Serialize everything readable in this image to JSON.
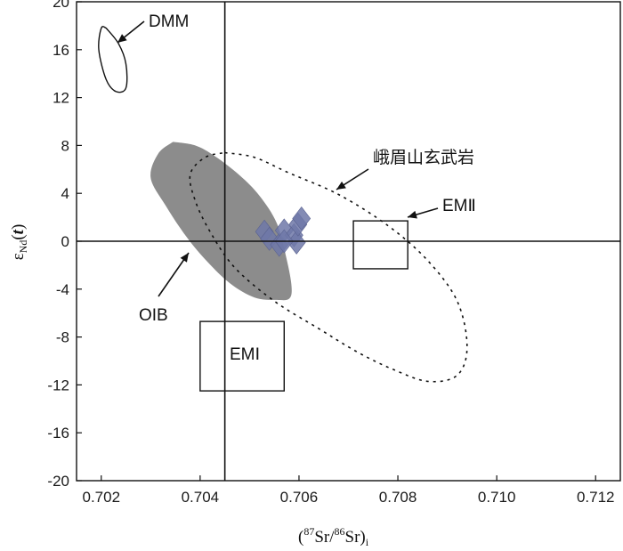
{
  "chart_data": {
    "type": "scatter",
    "xlabel": {
      "open": "(",
      "sup1": "87",
      "m1": "Sr/",
      "sup2": "86",
      "m2": "Sr)",
      "sub": "i"
    },
    "ylabel": {
      "main": "ε",
      "sub": "Nd",
      "open": "(",
      "var": "t",
      "close": ")"
    },
    "xlim": [
      0.7015,
      0.7125
    ],
    "ylim": [
      -20,
      20
    ],
    "x_ticks": [
      "0.702",
      "0.704",
      "0.706",
      "0.708",
      "0.710",
      "0.712"
    ],
    "y_ticks": [
      "20",
      "16",
      "12",
      "8",
      "4",
      "0",
      "-4",
      "-8",
      "-12",
      "-16",
      "-20"
    ],
    "reference_lines": {
      "x": 0.7045,
      "y": 0
    },
    "fields": {
      "dmm": {
        "label": "DMM",
        "points": [
          [
            0.7021,
            17.8
          ],
          [
            0.70235,
            16.5
          ],
          [
            0.7025,
            14.8
          ],
          [
            0.7025,
            12.8
          ],
          [
            0.7023,
            12.5
          ],
          [
            0.7021,
            13.5
          ],
          [
            0.70195,
            16
          ],
          [
            0.702,
            17.8
          ],
          [
            0.7021,
            17.8
          ]
        ]
      },
      "oib": {
        "label": "OIB",
        "color": "#8c8c8c",
        "points": [
          [
            0.70345,
            8.3
          ],
          [
            0.7039,
            8.0
          ],
          [
            0.7043,
            7.1
          ],
          [
            0.7048,
            5.5
          ],
          [
            0.7052,
            3.8
          ],
          [
            0.70555,
            1.5
          ],
          [
            0.70575,
            -1.5
          ],
          [
            0.70585,
            -3.8
          ],
          [
            0.7058,
            -4.8
          ],
          [
            0.70555,
            -4.9
          ],
          [
            0.7051,
            -4.7
          ],
          [
            0.7046,
            -3.5
          ],
          [
            0.7041,
            -1.5
          ],
          [
            0.7037,
            0.5
          ],
          [
            0.7033,
            3.0
          ],
          [
            0.703,
            5.3
          ],
          [
            0.70315,
            7.3
          ],
          [
            0.70345,
            8.3
          ]
        ]
      },
      "emeishan": {
        "label": "峨眉山玄武岩",
        "style": "dashed",
        "points": [
          [
            0.7045,
            7.4
          ],
          [
            0.7051,
            7.0
          ],
          [
            0.7058,
            5.7
          ],
          [
            0.7068,
            3.9
          ],
          [
            0.7078,
            1.3
          ],
          [
            0.7086,
            -1.6
          ],
          [
            0.7092,
            -5.0
          ],
          [
            0.7094,
            -8.8
          ],
          [
            0.7092,
            -11.2
          ],
          [
            0.7086,
            -11.7
          ],
          [
            0.7079,
            -10.7
          ],
          [
            0.7072,
            -9.3
          ],
          [
            0.7064,
            -7.3
          ],
          [
            0.7055,
            -5.0
          ],
          [
            0.7047,
            -2.2
          ],
          [
            0.7042,
            0.8
          ],
          [
            0.7039,
            3.4
          ],
          [
            0.7038,
            5.6
          ],
          [
            0.7041,
            7.0
          ],
          [
            0.7045,
            7.4
          ]
        ]
      },
      "em1": {
        "label": "EMⅠ",
        "box": {
          "x": [
            0.704,
            0.7057
          ],
          "y": [
            -12.5,
            -6.7
          ]
        }
      },
      "em2": {
        "label": "EMⅡ",
        "box": {
          "x": [
            0.7071,
            0.7082
          ],
          "y": [
            -2.3,
            1.7
          ]
        }
      }
    },
    "samples": {
      "color": "#6f78a8",
      "points": [
        [
          0.7053,
          0.8
        ],
        [
          0.7054,
          0.2
        ],
        [
          0.7056,
          -0.3
        ],
        [
          0.7057,
          0.9
        ],
        [
          0.7059,
          0.5
        ],
        [
          0.70595,
          -0.1
        ],
        [
          0.70598,
          1.4
        ],
        [
          0.70605,
          1.9
        ],
        [
          0.7057,
          0.0
        ]
      ]
    }
  }
}
